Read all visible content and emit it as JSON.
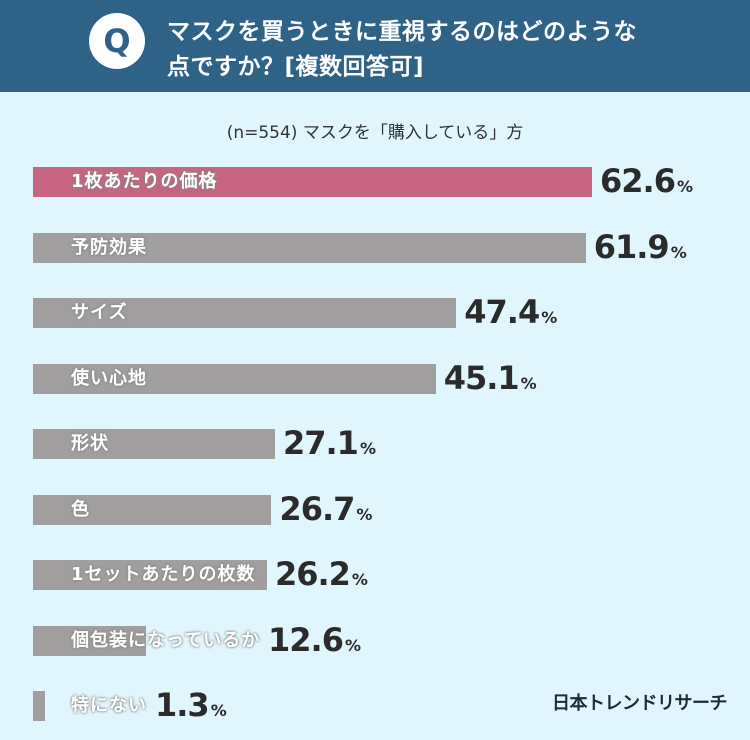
{
  "header": {
    "badge": "Q",
    "question_line1": "マスクを買うときに重視するのはどのような",
    "question_line2": "点ですか？[複数回答可]"
  },
  "subtitle": "(n=554) マスクを「購入している」方",
  "brand": "日本トレンドリサーチ",
  "colors": {
    "header_bg": "#2f6287",
    "page_bg": "#e0f6fc",
    "bar": "#a09e9e",
    "bar_highlight": "#c76482"
  },
  "chart_data": {
    "type": "bar",
    "orientation": "horizontal",
    "categories": [
      "1枚あたりの価格",
      "予防効果",
      "サイズ",
      "使い心地",
      "形状",
      "色",
      "1セットあたりの枚数",
      "個包装になっているか",
      "特にない"
    ],
    "values": [
      62.6,
      61.9,
      47.4,
      45.1,
      27.1,
      26.7,
      26.2,
      12.6,
      1.3
    ],
    "value_labels": [
      "62.6",
      "61.9",
      "47.4",
      "45.1",
      "27.1",
      "26.7",
      "26.2",
      "12.6",
      "1.3"
    ],
    "unit": "%",
    "highlight_index": 0,
    "grid": false,
    "legend": "none"
  }
}
